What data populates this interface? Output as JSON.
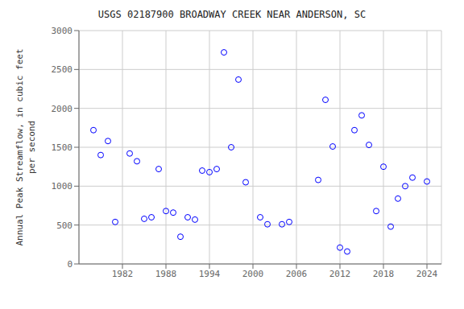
{
  "chart_data": {
    "type": "scatter",
    "title": "USGS 02187900 BROADWAY CREEK NEAR ANDERSON, SC",
    "ylabel": "Annual Peak Streamflow, in cubic feet\nper second",
    "x": [
      1978,
      1979,
      1980,
      1981,
      1983,
      1984,
      1985,
      1986,
      1987,
      1988,
      1989,
      1990,
      1991,
      1992,
      1993,
      1994,
      1995,
      1996,
      1997,
      1998,
      1999,
      2001,
      2002,
      2004,
      2005,
      2009,
      2010,
      2011,
      2012,
      2013,
      2014,
      2015,
      2016,
      2017,
      2018,
      2019,
      2020,
      2021,
      2022,
      2024
    ],
    "values": [
      1720,
      1400,
      1580,
      540,
      1420,
      1320,
      580,
      600,
      1220,
      680,
      660,
      350,
      600,
      570,
      1200,
      1180,
      1220,
      2720,
      1500,
      2370,
      1050,
      600,
      510,
      510,
      540,
      1080,
      2110,
      1510,
      210,
      160,
      1720,
      1910,
      1530,
      680,
      1250,
      480,
      840,
      1000,
      1110,
      1060
    ],
    "color": "blue",
    "marker": "circle",
    "xlim": [
      1976,
      2026
    ],
    "ylim": [
      0,
      3000
    ],
    "xticks": [
      1982,
      1988,
      1994,
      2000,
      2006,
      2012,
      2018,
      2024
    ],
    "yticks": [
      0,
      500,
      1000,
      1500,
      2000,
      2500,
      3000
    ],
    "grid": true
  }
}
